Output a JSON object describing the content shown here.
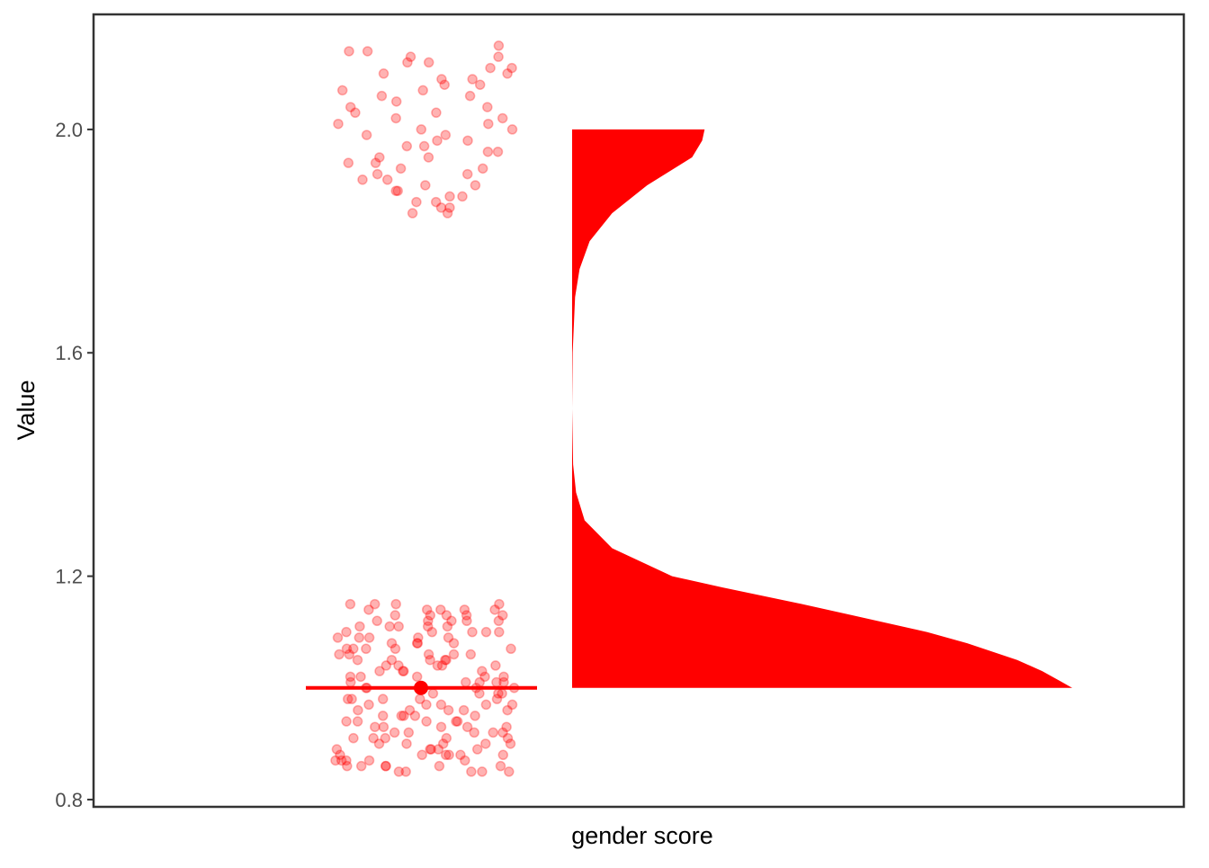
{
  "chart_data": {
    "type": "raincloud",
    "x_label": "gender score",
    "y_label": "Value",
    "color": "#ff0000",
    "ylim": [
      0.787,
      2.206
    ],
    "yticks": [
      0.8,
      1.2,
      1.6,
      {
        "value": 2,
        "label": "2.0"
      }
    ],
    "median": 1,
    "values": [
      2.14,
      1.98,
      2.03,
      1.87,
      2.1,
      1.93,
      2.06,
      1.9,
      2.12,
      1.95,
      2.01,
      1.86,
      2.08,
      1.97,
      2.04,
      1.89,
      2.13,
      1.92,
      2.0,
      1.88,
      2.11,
      1.96,
      2.07,
      1.85,
      2.02,
      1.94,
      2.09,
      1.91,
      2.15,
      1.99,
      2.05,
      1.87,
      1.93,
      2.12,
      1.98,
      2.03,
      1.86,
      2.1,
      1.95,
      2.06,
      1.9,
      2.01,
      1.88,
      2.14,
      1.97,
      2.08,
      1.92,
      2.04,
      1.85,
      2.11,
      1.96,
      2.0,
      1.89,
      2.07,
      1.94,
      2.13,
      1.91,
      2.02,
      1.99,
      2.09,
      1.14,
      0.86,
      1.02,
      0.93,
      1.11,
      0.88,
      1.06,
      0.97,
      1.13,
      0.9,
      1.04,
      0.95,
      1.09,
      0.87,
      1.01,
      0.92,
      1.12,
      0.85,
      1.07,
      0.98,
      1.15,
      0.89,
      1.03,
      0.94,
      1.1,
      0.91,
      1.05,
      0.96,
      1.08,
      0.86,
      1.0,
      0.93,
      1.13,
      0.88,
      1.06,
      0.97,
      1.11,
      0.9,
      1.02,
      0.95,
      1.14,
      0.87,
      1.04,
      0.92,
      1.09,
      0.99,
      1.12,
      0.85,
      1.07,
      0.94,
      1.01,
      0.89,
      1.1,
      0.96,
      1.05,
      0.91,
      1.15,
      0.88,
      1.03,
      0.98,
      1.08,
      0.86,
      1.0,
      0.93,
      1.13,
      0.9,
      1.06,
      0.97,
      1.11,
      0.87,
      1.02,
      0.95,
      1.14,
      0.92,
      1.04,
      0.89,
      1.09,
      0.99,
      1.12,
      0.85,
      1.07,
      0.94,
      1.01,
      0.96,
      1.1,
      0.91,
      1.05,
      0.88,
      1.15,
      0.98,
      1.03,
      0.86,
      1.08,
      0.93,
      1.0,
      0.9,
      1.13,
      0.97,
      1.06,
      0.87,
      1.11,
      0.95,
      1.02,
      0.92,
      1.14,
      0.89,
      1.04,
      0.99,
      1.09,
      0.85,
      1.12,
      0.94,
      1.07,
      0.96,
      1.01,
      0.91,
      1.1,
      0.88,
      1.05,
      0.98,
      1.15,
      0.86,
      1.03,
      0.93,
      1.08,
      0.9,
      1.0,
      0.97,
      1.13,
      0.87,
      1.06,
      0.95,
      1.11,
      0.92,
      1.02,
      0.89,
      1.14,
      0.99,
      1.04,
      0.85,
      1.09,
      0.94,
      1.12,
      0.96,
      1.07,
      0.91,
      1.01,
      0.88,
      1.1,
      0.98,
      1.05,
      0.86
    ],
    "density": {
      "y": [
        1.0,
        1.01,
        1.03,
        1.05,
        1.08,
        1.1,
        1.13,
        1.15,
        1.18,
        1.2,
        1.25,
        1.3,
        1.35,
        1.4,
        1.5,
        1.6,
        1.7,
        1.75,
        1.8,
        1.85,
        1.9,
        1.95,
        1.98,
        2.0
      ],
      "values": [
        1.0,
        0.98,
        0.94,
        0.89,
        0.79,
        0.71,
        0.56,
        0.46,
        0.3,
        0.2,
        0.08,
        0.025,
        0.008,
        0.002,
        0,
        0.001,
        0.006,
        0.015,
        0.035,
        0.08,
        0.15,
        0.24,
        0.26,
        0.265
      ]
    }
  }
}
